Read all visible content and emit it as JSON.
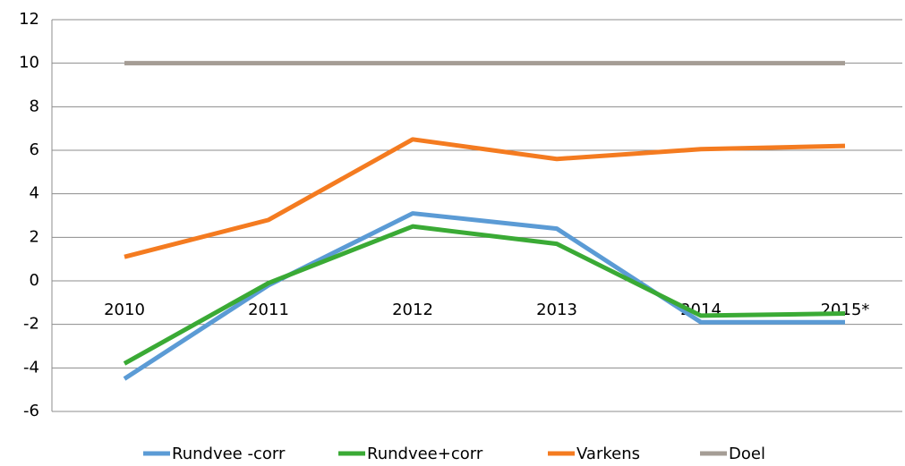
{
  "chart_data": {
    "type": "line",
    "categories": [
      "2010",
      "2011",
      "2012",
      "2013",
      "2014",
      "2015*"
    ],
    "series": [
      {
        "name": "Rundvee -corr",
        "color": "#5b9bd5",
        "values": [
          -4.5,
          -0.2,
          3.1,
          2.4,
          -1.9,
          -1.9
        ]
      },
      {
        "name": "Rundvee+corr",
        "color": "#3aaa35",
        "values": [
          -3.8,
          -0.1,
          2.5,
          1.7,
          -1.6,
          -1.5
        ]
      },
      {
        "name": "Varkens",
        "color": "#f47b20",
        "values": [
          1.1,
          2.8,
          6.5,
          5.6,
          6.05,
          6.2
        ]
      },
      {
        "name": "Doel",
        "color": "#a59d95",
        "values": [
          10,
          10,
          10,
          10,
          10,
          10
        ]
      }
    ],
    "ylim": [
      -6,
      12
    ],
    "yticks": [
      -6,
      -4,
      -2,
      0,
      2,
      4,
      6,
      8,
      10,
      12
    ],
    "grid": true,
    "legend": "bottom"
  }
}
